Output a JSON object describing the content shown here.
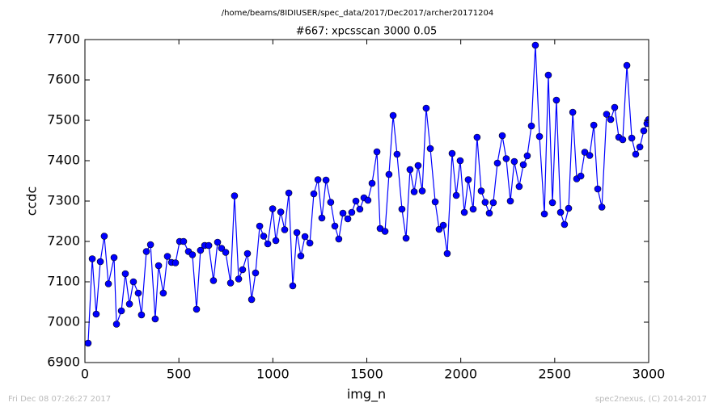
{
  "chart_data": {
    "type": "line",
    "suptitle": "/home/beams/8IDIUSER/spec_data/2017/Dec2017/archer20171204",
    "title": "#667: xpcsscan 3000 0.05",
    "x_label": "img_n",
    "y_label": "ccdc",
    "footer_left": "Fri Dec 08 07:26:27 2017",
    "footer_right": "spec2nexus, (C) 2014-2017",
    "xlim": [
      0,
      3000
    ],
    "xticks": [
      0,
      500,
      1000,
      1500,
      2000,
      2500,
      3000
    ],
    "ylim": [
      6900,
      7700
    ],
    "yticks": [
      6900,
      7000,
      7100,
      7200,
      7300,
      7400,
      7500,
      7600,
      7700
    ],
    "series": [
      {
        "name": "ccdc",
        "color": "#0000ff",
        "x": [
          17,
          39,
          60,
          82,
          103,
          125,
          155,
          168,
          194,
          215,
          237,
          258,
          284,
          301,
          327,
          349,
          374,
          392,
          417,
          439,
          461,
          482,
          504,
          525,
          551,
          572,
          594,
          615,
          637,
          659,
          684,
          706,
          727,
          749,
          775,
          796,
          818,
          839,
          865,
          887,
          908,
          930,
          951,
          973,
          999,
          1016,
          1042,
          1063,
          1085,
          1106,
          1128,
          1149,
          1171,
          1197,
          1218,
          1240,
          1261,
          1283,
          1308,
          1330,
          1351,
          1373,
          1399,
          1420,
          1442,
          1463,
          1485,
          1506,
          1528,
          1554,
          1571,
          1597,
          1618,
          1640,
          1661,
          1687,
          1709,
          1730,
          1752,
          1773,
          1795,
          1816,
          1838,
          1864,
          1885,
          1907,
          1928,
          1954,
          1976,
          1997,
          2019,
          2040,
          2066,
          2087,
          2109,
          2130,
          2152,
          2173,
          2195,
          2221,
          2242,
          2264,
          2285,
          2311,
          2333,
          2354,
          2376,
          2397,
          2419,
          2445,
          2466,
          2488,
          2509,
          2531,
          2552,
          2574,
          2596,
          2617,
          2639,
          2660,
          2686,
          2708,
          2729,
          2751,
          2776,
          2798,
          2819,
          2841,
          2862,
          2884,
          2910,
          2931,
          2953,
          2974,
          2991,
          3000
        ],
        "values": [
          6948,
          7157,
          7020,
          7150,
          7213,
          7095,
          7160,
          6995,
          7028,
          7120,
          7045,
          7100,
          7072,
          7018,
          7175,
          7192,
          7008,
          7140,
          7072,
          7163,
          7148,
          7147,
          7200,
          7200,
          7175,
          7167,
          7032,
          7178,
          7190,
          7190,
          7103,
          7198,
          7183,
          7173,
          7097,
          7313,
          7107,
          7130,
          7170,
          7056,
          7122,
          7238,
          7213,
          7194,
          7281,
          7202,
          7273,
          7229,
          7320,
          7090,
          7222,
          7164,
          7212,
          7196,
          7318,
          7353,
          7258,
          7352,
          7297,
          7238,
          7206,
          7270,
          7256,
          7272,
          7300,
          7280,
          7308,
          7302,
          7344,
          7422,
          7232,
          7225,
          7366,
          7512,
          7416,
          7280,
          7208,
          7378,
          7323,
          7388,
          7325,
          7530,
          7430,
          7298,
          7230,
          7240,
          7170,
          7418,
          7314,
          7400,
          7272,
          7353,
          7280,
          7458,
          7325,
          7297,
          7270,
          7296,
          7394,
          7462,
          7405,
          7300,
          7398,
          7336,
          7390,
          7412,
          7486,
          7686,
          7460,
          7268,
          7612,
          7296,
          7550,
          7272,
          7242,
          7282,
          7520,
          7355,
          7362,
          7421,
          7413,
          7488,
          7330,
          7285,
          7515,
          7502,
          7532,
          7458,
          7452,
          7636,
          7456,
          7416,
          7434,
          7474,
          7492,
          7502
        ]
      }
    ]
  }
}
